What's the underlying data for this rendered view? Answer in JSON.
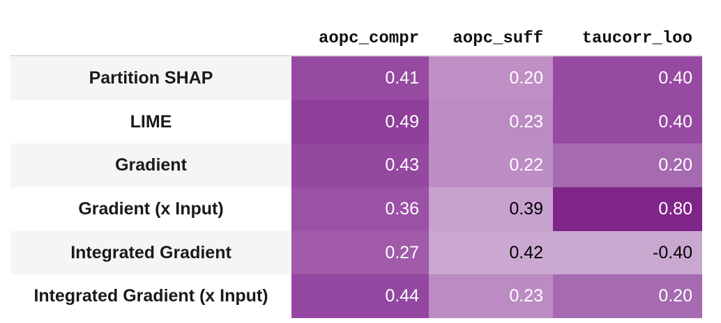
{
  "table": {
    "corner": "",
    "columns": [
      "aopc_compr",
      "aopc_suff",
      "taucorr_loo"
    ],
    "rows": [
      {
        "label": "Partition SHAP",
        "values": [
          "0.41",
          "0.20",
          "0.40"
        ],
        "bg": [
          "#974aa1",
          "#bf8fc6",
          "#974aa1"
        ],
        "fg": [
          "#ffffff",
          "#ffffff",
          "#ffffff"
        ]
      },
      {
        "label": "LIME",
        "values": [
          "0.49",
          "0.23",
          "0.40"
        ],
        "bg": [
          "#8f3f9a",
          "#bc8bc4",
          "#974aa1"
        ],
        "fg": [
          "#ffffff",
          "#ffffff",
          "#ffffff"
        ]
      },
      {
        "label": "Gradient",
        "values": [
          "0.43",
          "0.22",
          "0.20"
        ],
        "bg": [
          "#9548a0",
          "#bd8dc5",
          "#a56ab0"
        ],
        "fg": [
          "#ffffff",
          "#ffffff",
          "#ffffff"
        ]
      },
      {
        "label": "Gradient (x Input)",
        "values": [
          "0.36",
          "0.39",
          "0.80"
        ],
        "bg": [
          "#9b51a6",
          "#c8a2cf",
          "#7f2589"
        ],
        "fg": [
          "#ffffff",
          "#000000",
          "#ffffff"
        ]
      },
      {
        "label": "Integrated Gradient",
        "values": [
          "0.27",
          "0.42",
          "-0.40"
        ],
        "bg": [
          "#a15ba9",
          "#cba8d2",
          "#c9a8d0"
        ],
        "fg": [
          "#ffffff",
          "#000000",
          "#000000"
        ]
      },
      {
        "label": "Integrated Gradient (x Input)",
        "values": [
          "0.44",
          "0.23",
          "0.20"
        ],
        "bg": [
          "#9447a0",
          "#bc8bc4",
          "#a56ab0"
        ],
        "fg": [
          "#ffffff",
          "#ffffff",
          "#ffffff"
        ]
      }
    ]
  }
}
